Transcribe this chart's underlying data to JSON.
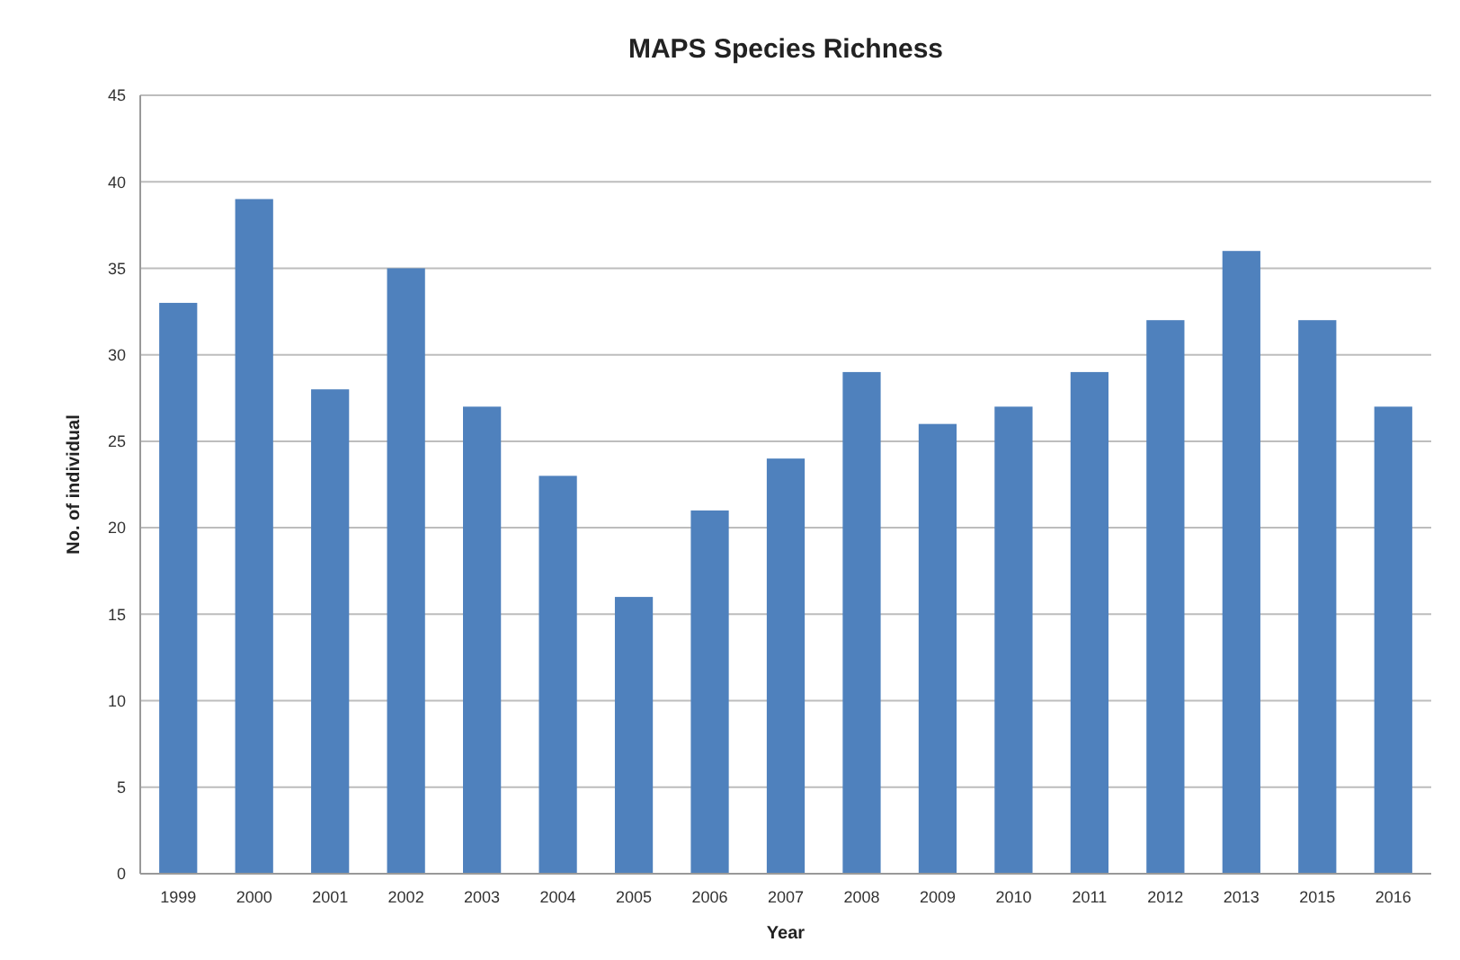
{
  "chart_data": {
    "type": "bar",
    "title": "MAPS Species Richness",
    "xlabel": "Year",
    "ylabel": "No. of individual",
    "categories": [
      "1999",
      "2000",
      "2001",
      "2002",
      "2003",
      "2004",
      "2005",
      "2006",
      "2007",
      "2008",
      "2009",
      "2010",
      "2011",
      "2012",
      "2013",
      "2015",
      "2016"
    ],
    "values": [
      33,
      39,
      28,
      35,
      27,
      23,
      16,
      21,
      24,
      29,
      26,
      27,
      29,
      32,
      36,
      32,
      27
    ],
    "color": "#4f81bd",
    "ylim": [
      0,
      45
    ],
    "yticks": [
      0,
      5,
      10,
      15,
      20,
      25,
      30,
      35,
      40,
      45
    ],
    "grid": "y"
  }
}
